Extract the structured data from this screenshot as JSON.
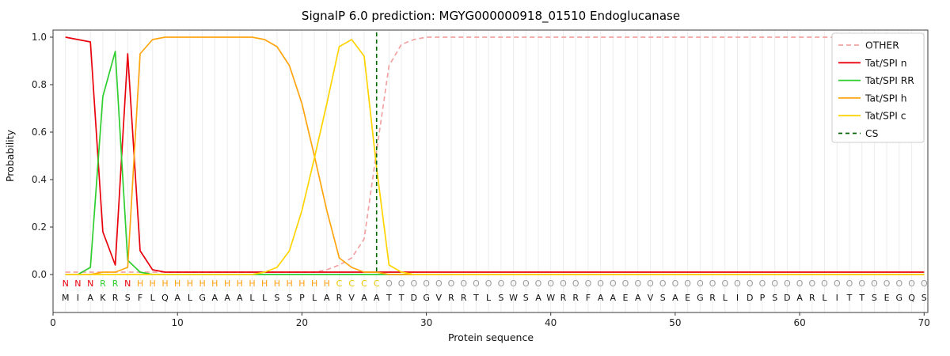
{
  "figure": {
    "background": "#ffffff"
  },
  "chart_data": {
    "type": "line",
    "title": "SignalP 6.0 prediction: MGYG000000918_01510 Endoglucanase",
    "xlabel": "Protein sequence",
    "ylabel": "Probability",
    "xlim": [
      0,
      70.3
    ],
    "ylim": [
      0.0,
      1.0
    ],
    "xticks": [
      0,
      10,
      20,
      30,
      40,
      50,
      60,
      70
    ],
    "yticks": [
      0.0,
      0.2,
      0.4,
      0.6,
      0.8,
      1.0
    ],
    "grid": "vertical-per-residue",
    "legend_position": "upper right",
    "x_start": 1,
    "cs_position": 26,
    "cs_label": "CS",
    "cs_color": "#006400",
    "sequence": "MIAKRSFLQALGAAALLSSPLARVAATTDGVRRTLSWSAWRRFAAEAVSAEGRLIDPSDARLITTSEGQS",
    "residue_labels": "NNNRRNHHHHHHHHHHHHHHHHCCCCOOOOOOOOOOOOOOOOOOOOOOOOOOOOOOOOOOOOOOOOOOOO",
    "label_colors": {
      "N": "#e8000b",
      "R": "#2fce2f",
      "H": "#ff9f0e",
      "C": "#eec900",
      "O": "#9a9a9a"
    },
    "sequence_color": "#111111",
    "series": [
      {
        "name": "OTHER",
        "color": "#f2a2a2",
        "dash": "6,4",
        "values": [
          0.01,
          0.01,
          0.01,
          0.01,
          0.01,
          0.01,
          0.01,
          0.01,
          0.01,
          0.01,
          0.01,
          0.01,
          0.01,
          0.01,
          0.01,
          0.01,
          0.01,
          0.01,
          0.01,
          0.01,
          0.01,
          0.02,
          0.04,
          0.07,
          0.15,
          0.52,
          0.88,
          0.97,
          0.99,
          1.0,
          1.0,
          1.0,
          1.0,
          1.0,
          1.0,
          1.0,
          1.0,
          1.0,
          1.0,
          1.0,
          1.0,
          1.0,
          1.0,
          1.0,
          1.0,
          1.0,
          1.0,
          1.0,
          1.0,
          1.0,
          1.0,
          1.0,
          1.0,
          1.0,
          1.0,
          1.0,
          1.0,
          1.0,
          1.0,
          1.0,
          1.0,
          1.0,
          1.0,
          1.0,
          1.0,
          1.0,
          1.0,
          1.0,
          1.0,
          1.0
        ]
      },
      {
        "name": "Tat/SPI n",
        "color": "#e8000b",
        "dash": null,
        "values": [
          1.0,
          0.99,
          0.98,
          0.18,
          0.04,
          0.93,
          0.1,
          0.02,
          0.01,
          0.01,
          0.01,
          0.01,
          0.01,
          0.01,
          0.01,
          0.01,
          0.01,
          0.01,
          0.01,
          0.01,
          0.01,
          0.01,
          0.01,
          0.01,
          0.01,
          0.01,
          0.01,
          0.01,
          0.01,
          0.01,
          0.01,
          0.01,
          0.01,
          0.01,
          0.01,
          0.01,
          0.01,
          0.01,
          0.01,
          0.01,
          0.01,
          0.01,
          0.01,
          0.01,
          0.01,
          0.01,
          0.01,
          0.01,
          0.01,
          0.01,
          0.01,
          0.01,
          0.01,
          0.01,
          0.01,
          0.01,
          0.01,
          0.01,
          0.01,
          0.01,
          0.01,
          0.01,
          0.01,
          0.01,
          0.01,
          0.01,
          0.01,
          0.01,
          0.01,
          0.01
        ]
      },
      {
        "name": "Tat/SPI RR",
        "color": "#2fce2f",
        "dash": null,
        "values": [
          0.0,
          0.0,
          0.03,
          0.75,
          0.94,
          0.06,
          0.01,
          0.0,
          0.0,
          0.0,
          0.0,
          0.0,
          0.0,
          0.0,
          0.0,
          0.0,
          0.0,
          0.0,
          0.0,
          0.0,
          0.0,
          0.0,
          0.0,
          0.0,
          0.0,
          0.0,
          0.0,
          0.0,
          0.0,
          0.0,
          0.0,
          0.0,
          0.0,
          0.0,
          0.0,
          0.0,
          0.0,
          0.0,
          0.0,
          0.0,
          0.0,
          0.0,
          0.0,
          0.0,
          0.0,
          0.0,
          0.0,
          0.0,
          0.0,
          0.0,
          0.0,
          0.0,
          0.0,
          0.0,
          0.0,
          0.0,
          0.0,
          0.0,
          0.0,
          0.0,
          0.0,
          0.0,
          0.0,
          0.0,
          0.0,
          0.0,
          0.0,
          0.0,
          0.0,
          0.0
        ]
      },
      {
        "name": "Tat/SPI h",
        "color": "#ffa510",
        "dash": null,
        "values": [
          0.0,
          0.0,
          0.0,
          0.01,
          0.01,
          0.03,
          0.93,
          0.99,
          1.0,
          1.0,
          1.0,
          1.0,
          1.0,
          1.0,
          1.0,
          1.0,
          0.99,
          0.96,
          0.88,
          0.72,
          0.5,
          0.27,
          0.07,
          0.03,
          0.01,
          0.01,
          0.0,
          0.0,
          0.0,
          0.0,
          0.0,
          0.0,
          0.0,
          0.0,
          0.0,
          0.0,
          0.0,
          0.0,
          0.0,
          0.0,
          0.0,
          0.0,
          0.0,
          0.0,
          0.0,
          0.0,
          0.0,
          0.0,
          0.0,
          0.0,
          0.0,
          0.0,
          0.0,
          0.0,
          0.0,
          0.0,
          0.0,
          0.0,
          0.0,
          0.0,
          0.0,
          0.0,
          0.0,
          0.0,
          0.0,
          0.0,
          0.0,
          0.0,
          0.0,
          0.0
        ]
      },
      {
        "name": "Tat/SPI c",
        "color": "#ffd400",
        "dash": null,
        "values": [
          0.0,
          0.0,
          0.0,
          0.0,
          0.0,
          0.0,
          0.0,
          0.0,
          0.0,
          0.0,
          0.0,
          0.0,
          0.0,
          0.0,
          0.0,
          0.0,
          0.01,
          0.03,
          0.1,
          0.27,
          0.49,
          0.72,
          0.96,
          0.99,
          0.92,
          0.45,
          0.04,
          0.01,
          0.0,
          0.0,
          0.0,
          0.0,
          0.0,
          0.0,
          0.0,
          0.0,
          0.0,
          0.0,
          0.0,
          0.0,
          0.0,
          0.0,
          0.0,
          0.0,
          0.0,
          0.0,
          0.0,
          0.0,
          0.0,
          0.0,
          0.0,
          0.0,
          0.0,
          0.0,
          0.0,
          0.0,
          0.0,
          0.0,
          0.0,
          0.0,
          0.0,
          0.0,
          0.0,
          0.0,
          0.0,
          0.0,
          0.0,
          0.0,
          0.0,
          0.0
        ]
      }
    ]
  }
}
